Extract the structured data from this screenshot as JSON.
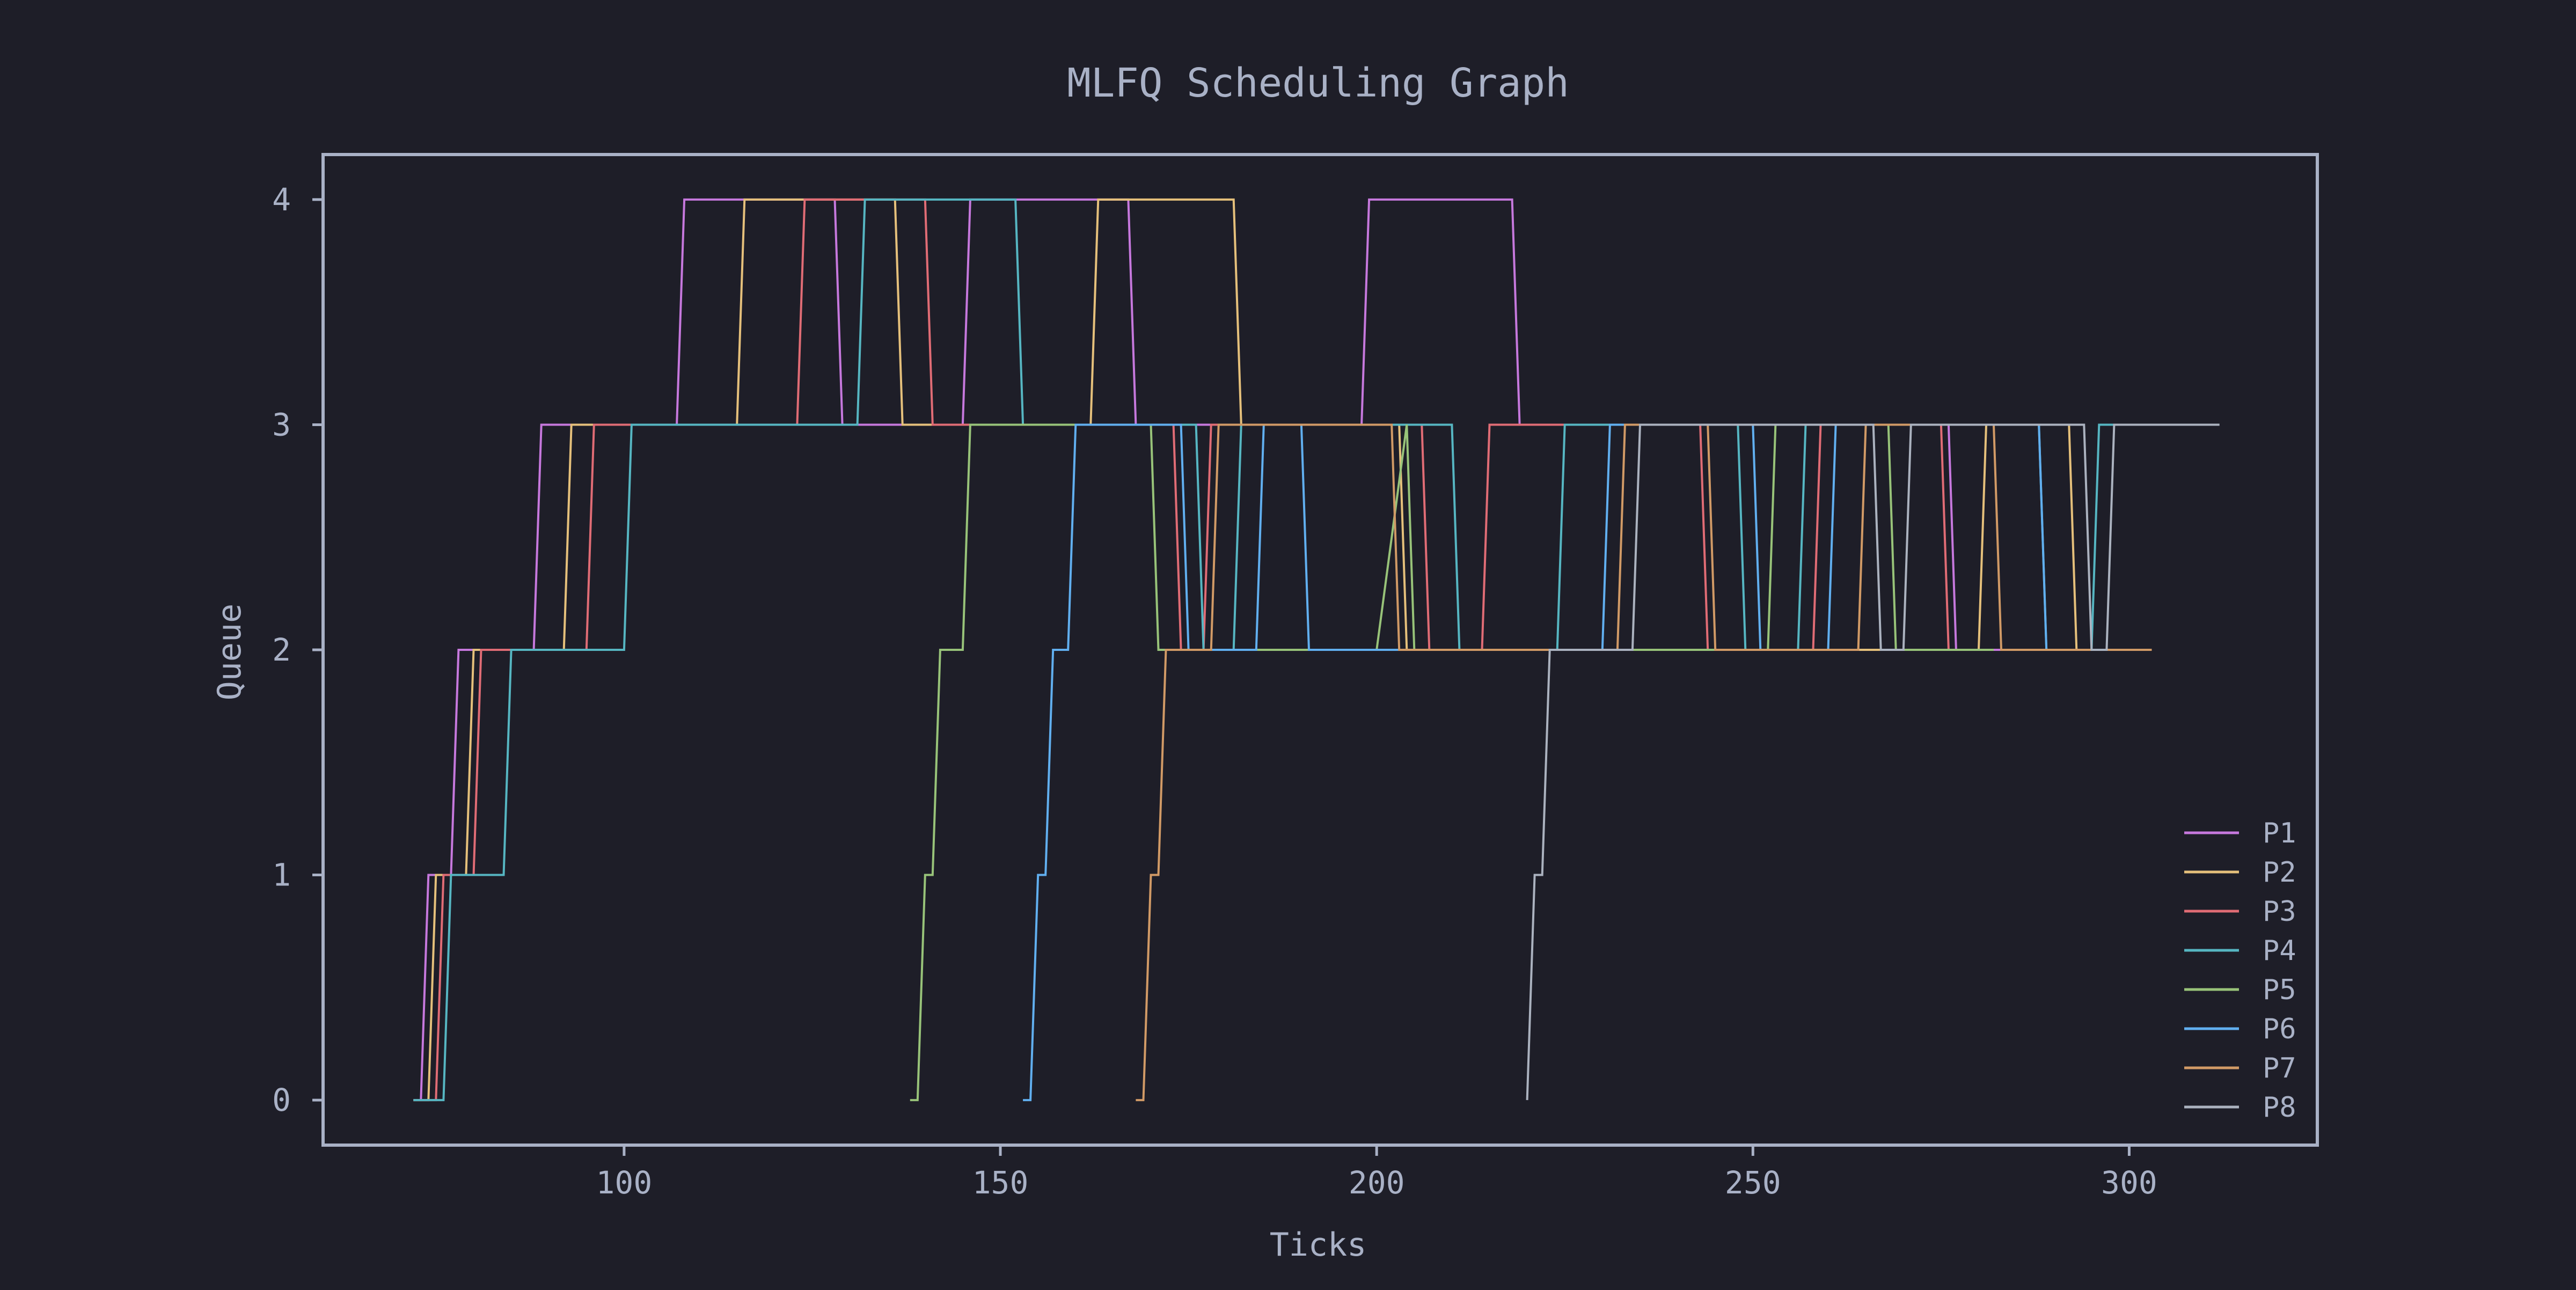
{
  "chart_data": {
    "type": "line",
    "title": "MLFQ Scheduling Graph",
    "xlabel": "Ticks",
    "ylabel": "Queue",
    "xlim": [
      60,
      325
    ],
    "ylim": [
      -0.2,
      4.2
    ],
    "x_ticks": [
      100,
      150,
      200,
      250,
      300
    ],
    "y_ticks": [
      0,
      1,
      2,
      3,
      4
    ],
    "grid": false,
    "legend_position": "lower-right",
    "background": "#1e1e28",
    "axis_color": "#a9b1c6",
    "text_color": "#a9b1c6",
    "series": [
      {
        "name": "P1",
        "color": "#c678dd",
        "points": [
          [
            73,
            0
          ],
          [
            74,
            1
          ],
          [
            77,
            1
          ],
          [
            78,
            2
          ],
          [
            88,
            2
          ],
          [
            89,
            3
          ],
          [
            107,
            3
          ],
          [
            108,
            4
          ],
          [
            128,
            4
          ],
          [
            129,
            3
          ],
          [
            145,
            3
          ],
          [
            146,
            4
          ],
          [
            167,
            4
          ],
          [
            168,
            3
          ],
          [
            198,
            3
          ],
          [
            199,
            4
          ],
          [
            218,
            4
          ],
          [
            219,
            3
          ],
          [
            276,
            3
          ],
          [
            277,
            2
          ],
          [
            284,
            2
          ]
        ]
      },
      {
        "name": "P2",
        "color": "#e5c07b",
        "points": [
          [
            72,
            0
          ],
          [
            73,
            0
          ],
          [
            74,
            0
          ],
          [
            75,
            1
          ],
          [
            79,
            1
          ],
          [
            80,
            2
          ],
          [
            92,
            2
          ],
          [
            93,
            3
          ],
          [
            115,
            3
          ],
          [
            116,
            4
          ],
          [
            136,
            4
          ],
          [
            137,
            3
          ],
          [
            162,
            3
          ],
          [
            163,
            4
          ],
          [
            181,
            4
          ],
          [
            182,
            3
          ],
          [
            203,
            3
          ],
          [
            204,
            2
          ],
          [
            280,
            2
          ],
          [
            281,
            3
          ],
          [
            292,
            3
          ],
          [
            293,
            2
          ],
          [
            303,
            2
          ]
        ]
      },
      {
        "name": "P3",
        "color": "#e06c75",
        "points": [
          [
            72,
            0
          ],
          [
            75,
            0
          ],
          [
            76,
            1
          ],
          [
            80,
            1
          ],
          [
            81,
            2
          ],
          [
            95,
            2
          ],
          [
            96,
            3
          ],
          [
            123,
            3
          ],
          [
            124,
            4
          ],
          [
            140,
            4
          ],
          [
            141,
            3
          ],
          [
            173,
            3
          ],
          [
            174,
            2
          ],
          [
            177,
            2
          ],
          [
            178,
            3
          ],
          [
            206,
            3
          ],
          [
            207,
            2
          ],
          [
            214,
            2
          ],
          [
            215,
            3
          ],
          [
            243,
            3
          ],
          [
            244,
            2
          ],
          [
            258,
            2
          ],
          [
            259,
            3
          ],
          [
            275,
            3
          ],
          [
            276,
            2
          ],
          [
            278,
            2
          ]
        ]
      },
      {
        "name": "P4",
        "color": "#56b6c2",
        "points": [
          [
            72,
            0
          ],
          [
            76,
            0
          ],
          [
            77,
            1
          ],
          [
            84,
            1
          ],
          [
            85,
            2
          ],
          [
            100,
            2
          ],
          [
            101,
            3
          ],
          [
            131,
            3
          ],
          [
            132,
            4
          ],
          [
            152,
            4
          ],
          [
            153,
            3
          ],
          [
            176,
            3
          ],
          [
            177,
            2
          ],
          [
            181,
            2
          ],
          [
            182,
            3
          ],
          [
            210,
            3
          ],
          [
            211,
            2
          ],
          [
            224,
            2
          ],
          [
            225,
            3
          ],
          [
            248,
            3
          ],
          [
            249,
            2
          ],
          [
            256,
            2
          ],
          [
            257,
            3
          ],
          [
            288,
            3
          ],
          [
            289,
            2
          ],
          [
            295,
            2
          ],
          [
            296,
            3
          ],
          [
            300,
            3
          ]
        ]
      },
      {
        "name": "P5",
        "color": "#98c379",
        "points": [
          [
            138,
            0
          ],
          [
            139,
            0
          ],
          [
            140,
            1
          ],
          [
            141,
            1
          ],
          [
            142,
            2
          ],
          [
            145,
            2
          ],
          [
            146,
            3
          ],
          [
            170,
            3
          ],
          [
            171,
            2
          ],
          [
            200,
            2
          ],
          [
            204,
            3
          ],
          [
            205,
            2
          ],
          [
            252,
            2
          ],
          [
            253,
            3
          ],
          [
            268,
            3
          ],
          [
            269,
            2
          ],
          [
            282,
            2
          ]
        ]
      },
      {
        "name": "P6",
        "color": "#61afef",
        "points": [
          [
            153,
            0
          ],
          [
            154,
            0
          ],
          [
            155,
            1
          ],
          [
            156,
            1
          ],
          [
            157,
            2
          ],
          [
            159,
            2
          ],
          [
            160,
            3
          ],
          [
            174,
            3
          ],
          [
            175,
            2
          ],
          [
            184,
            2
          ],
          [
            185,
            3
          ],
          [
            190,
            3
          ],
          [
            191,
            2
          ],
          [
            230,
            2
          ],
          [
            231,
            3
          ],
          [
            250,
            3
          ],
          [
            251,
            2
          ],
          [
            260,
            2
          ],
          [
            261,
            3
          ],
          [
            288,
            3
          ],
          [
            289,
            2
          ],
          [
            298,
            2
          ]
        ]
      },
      {
        "name": "P7",
        "color": "#d19a66",
        "points": [
          [
            168,
            0
          ],
          [
            169,
            0
          ],
          [
            170,
            1
          ],
          [
            171,
            1
          ],
          [
            172,
            2
          ],
          [
            178,
            2
          ],
          [
            179,
            3
          ],
          [
            202,
            3
          ],
          [
            203,
            2
          ],
          [
            232,
            2
          ],
          [
            233,
            3
          ],
          [
            244,
            3
          ],
          [
            245,
            2
          ],
          [
            264,
            2
          ],
          [
            265,
            3
          ],
          [
            282,
            3
          ],
          [
            283,
            2
          ],
          [
            303,
            2
          ]
        ]
      },
      {
        "name": "P8",
        "color": "#abb2bf",
        "points": [
          [
            220,
            0
          ],
          [
            221,
            1
          ],
          [
            222,
            1
          ],
          [
            223,
            2
          ],
          [
            234,
            2
          ],
          [
            235,
            3
          ],
          [
            266,
            3
          ],
          [
            267,
            2
          ],
          [
            270,
            2
          ],
          [
            271,
            3
          ],
          [
            294,
            3
          ],
          [
            295,
            2
          ],
          [
            297,
            2
          ],
          [
            298,
            3
          ],
          [
            312,
            3
          ]
        ]
      }
    ]
  }
}
